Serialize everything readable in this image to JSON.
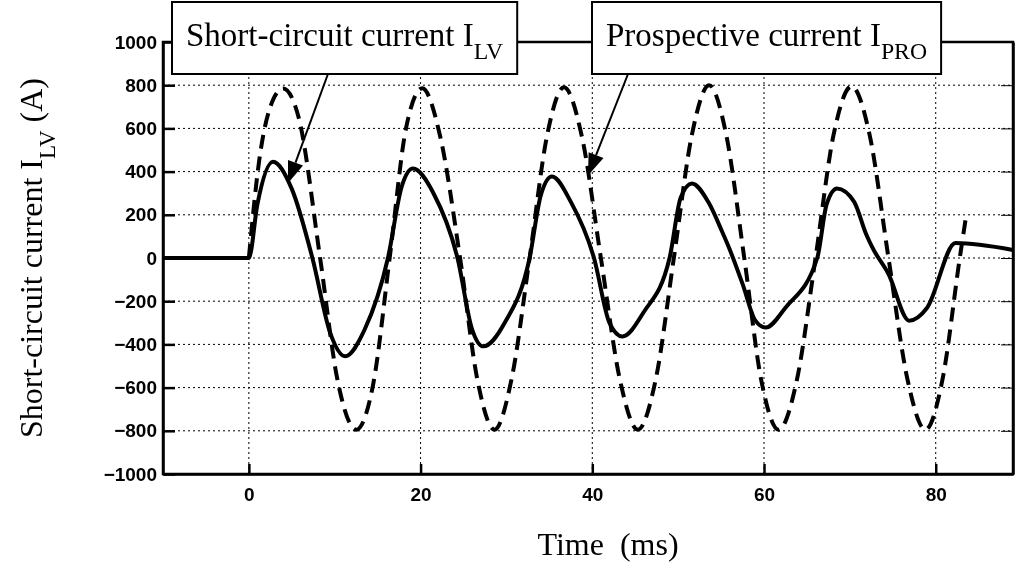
{
  "chart_data": {
    "type": "line",
    "xlabel": "Time  (ms)",
    "ylabel": "Short-circuit current I$_{LV}$ (A)",
    "xlim": [
      -10,
      89
    ],
    "xticks": [
      0,
      20,
      40,
      60,
      80
    ],
    "ylim": [
      -1000,
      1000
    ],
    "yticks": [
      -1000,
      -800,
      -600,
      -400,
      -200,
      0,
      200,
      400,
      600,
      800,
      1000
    ],
    "grid": true,
    "series": [
      {
        "name": "Short-circuit current I$_{LV}$",
        "color": "#000000",
        "line_style": "solid",
        "x": [
          -10,
          0,
          1,
          2.8,
          5,
          7.4,
          9.5,
          11.2,
          13.5,
          16.2,
          17.8,
          19.1,
          21.5,
          24.3,
          26,
          27.3,
          29.8,
          32.7,
          34,
          35.3,
          37.5,
          40.2,
          42,
          43.5,
          46,
          49,
          50.3,
          51.6,
          53.5,
          55.1,
          55.9,
          57.5,
          59,
          60.2,
          62.5,
          66.2,
          67.3,
          68.5,
          70.5,
          71.9,
          72.6,
          74.5,
          76.9,
          79,
          82.3,
          89
        ],
        "values": [
          0,
          0,
          250,
          446,
          320,
          0,
          -350,
          -455,
          -330,
          0,
          330,
          414,
          300,
          0,
          -330,
          -409,
          -300,
          0,
          290,
          377,
          260,
          0,
          -300,
          -363,
          -250,
          0,
          280,
          345,
          260,
          124,
          50,
          -120,
          -290,
          -322,
          -230,
          0,
          250,
          322,
          260,
          110,
          50,
          -74,
          -290,
          -230,
          69,
          37
        ]
      },
      {
        "name": "Prospective current I$_{PRO}$",
        "color": "#000000",
        "line_style": "dashed",
        "x": [
          0,
          1.2,
          2.5,
          4,
          5.8,
          8.3,
          10.3,
          12.5,
          14.5,
          16.4,
          18.3,
          20.2,
          22.3,
          24.6,
          26.6,
          28.6,
          30.6,
          32.7,
          34.7,
          36.7,
          38.8,
          41,
          43.2,
          45.3,
          47.4,
          49.5,
          51.6,
          53.6,
          55.6,
          57.7,
          59.7,
          61.7,
          63.8,
          66,
          68.1,
          70.2,
          72.3,
          74.5,
          76.7,
          78.8,
          80.8,
          82.8,
          83.6
        ],
        "values": [
          0,
          450,
          700,
          785,
          650,
          0,
          -560,
          -795,
          -580,
          0,
          600,
          786,
          560,
          0,
          -560,
          -795,
          -560,
          0,
          560,
          790,
          560,
          0,
          -560,
          -795,
          -560,
          0,
          570,
          800,
          570,
          0,
          -570,
          -795,
          -570,
          0,
          570,
          795,
          570,
          0,
          -560,
          -795,
          -560,
          0,
          210
        ]
      }
    ]
  }
}
